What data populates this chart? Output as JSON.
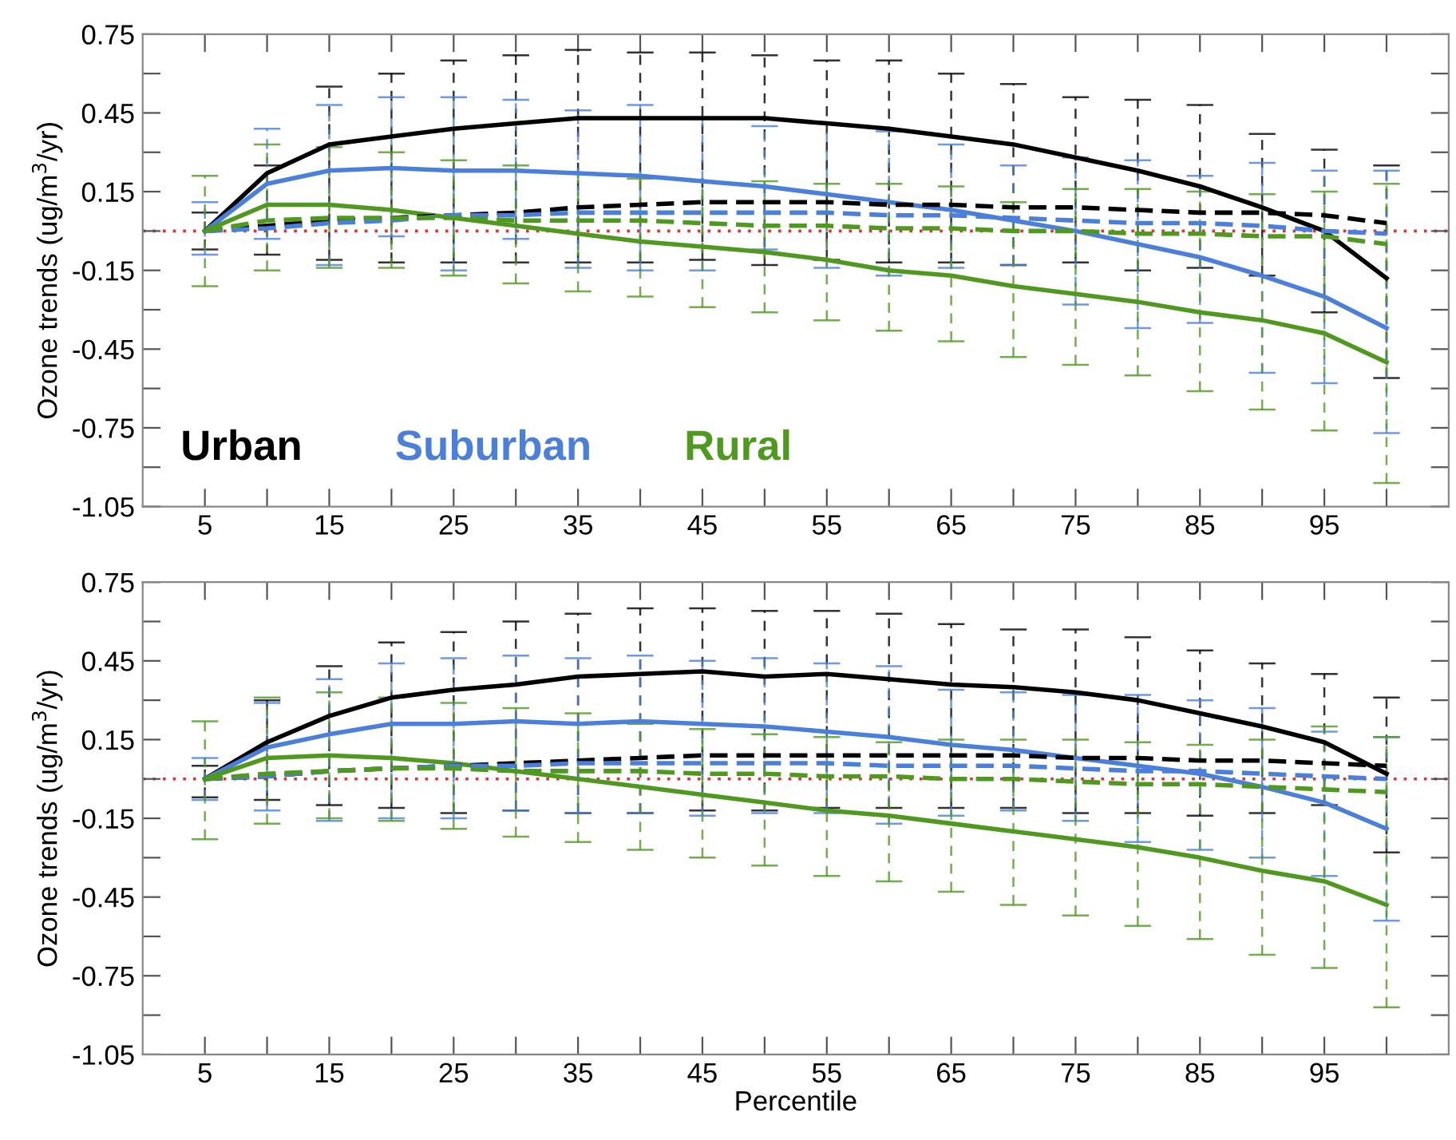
{
  "chart_data": [
    {
      "type": "line",
      "ylabel": "Ozone trends (ug/m$^{3}$/yr)",
      "x": [
        5,
        10,
        15,
        20,
        25,
        30,
        35,
        40,
        45,
        50,
        55,
        60,
        65,
        70,
        75,
        80,
        85,
        90,
        95,
        100
      ],
      "xlim": [
        0,
        105
      ],
      "ylim": [
        -1.05,
        0.75
      ],
      "xticks": [
        5,
        {
          "value": 10,
          "label": null
        },
        15,
        {
          "value": 20,
          "label": null
        },
        25,
        {
          "value": 30,
          "label": null
        },
        35,
        {
          "value": 40,
          "label": null
        },
        45,
        {
          "value": 50,
          "label": null
        },
        55,
        {
          "value": 60,
          "label": null
        },
        65,
        {
          "value": 70,
          "label": null
        },
        75,
        {
          "value": 80,
          "label": null
        },
        85,
        {
          "value": 90,
          "label": null
        },
        95,
        {
          "value": 100,
          "label": null
        }
      ],
      "yticks": [
        0.75,
        {
          "value": 0.6,
          "label": null
        },
        0.45,
        {
          "value": 0.3,
          "label": null
        },
        0.15,
        {
          "value": 0,
          "label": null
        },
        -0.15,
        {
          "value": -0.3,
          "label": null
        },
        -0.45,
        {
          "value": -0.6,
          "label": null
        },
        -0.75,
        {
          "value": -0.9,
          "label": null
        },
        -1.05
      ],
      "legend": "bottom left",
      "grid": false,
      "marker": "none",
      "ref_lines": [
        {
          "axis": "y",
          "value": 0,
          "color": "#e03030",
          "line_style": "dotted"
        }
      ],
      "series": [
        {
          "name": "Urban",
          "color": "#000000",
          "line_style": "solid",
          "values": [
            0,
            0.22,
            0.33,
            0.36,
            0.39,
            0.41,
            0.43,
            0.43,
            0.43,
            0.43,
            0.41,
            0.39,
            0.36,
            0.33,
            0.28,
            0.23,
            0.17,
            0.09,
            0.0,
            -0.18
          ],
          "errors": [
            [
              -0.07,
              0.07
            ],
            [
              -0.09,
              0.25
            ],
            [
              -0.11,
              0.55
            ],
            [
              -0.12,
              0.6
            ],
            [
              -0.12,
              0.65
            ],
            [
              -0.12,
              0.67
            ],
            [
              -0.12,
              0.69
            ],
            [
              -0.12,
              0.68
            ],
            [
              -0.11,
              0.68
            ],
            [
              -0.13,
              0.67
            ],
            [
              -0.11,
              0.65
            ],
            [
              -0.12,
              0.65
            ],
            [
              -0.12,
              0.6
            ],
            [
              -0.13,
              0.56
            ],
            [
              -0.12,
              0.51
            ],
            [
              -0.15,
              0.5
            ],
            [
              -0.14,
              0.48
            ],
            [
              -0.17,
              0.37
            ],
            [
              -0.31,
              0.31
            ],
            [
              -0.56,
              0.25
            ]
          ]
        },
        {
          "name": "Suburban",
          "color": "#4a80dc",
          "line_style": "solid",
          "values": [
            0,
            0.18,
            0.23,
            0.24,
            0.23,
            0.23,
            0.22,
            0.21,
            0.19,
            0.17,
            0.14,
            0.11,
            0.08,
            0.04,
            0.0,
            -0.05,
            -0.1,
            -0.17,
            -0.25,
            -0.37
          ],
          "errors": [
            [
              -0.09,
              0.11
            ],
            [
              -0.03,
              0.39
            ],
            [
              -0.13,
              0.48
            ],
            [
              -0.02,
              0.51
            ],
            [
              -0.15,
              0.51
            ],
            [
              -0.03,
              0.5
            ],
            [
              -0.14,
              0.46
            ],
            [
              -0.15,
              0.48
            ],
            [
              -0.15,
              0.43
            ],
            [
              -0.07,
              0.4
            ],
            [
              -0.14,
              0.41
            ],
            [
              -0.17,
              0.38
            ],
            [
              -0.14,
              0.33
            ],
            [
              -0.13,
              0.25
            ],
            [
              -0.28,
              0.28
            ],
            [
              -0.37,
              0.27
            ],
            [
              -0.35,
              0.21
            ],
            [
              -0.54,
              0.26
            ],
            [
              -0.58,
              0.23
            ],
            [
              -0.77,
              0.23
            ]
          ]
        },
        {
          "name": "Rural",
          "color": "#4f9a1e",
          "line_style": "solid",
          "values": [
            0,
            0.1,
            0.1,
            0.08,
            0.05,
            0.02,
            -0.01,
            -0.04,
            -0.06,
            -0.08,
            -0.11,
            -0.15,
            -0.17,
            -0.21,
            -0.24,
            -0.27,
            -0.31,
            -0.34,
            -0.39,
            -0.5
          ],
          "errors": [
            [
              -0.21,
              0.21
            ],
            [
              -0.15,
              0.33
            ],
            [
              -0.14,
              0.32
            ],
            [
              -0.14,
              0.3
            ],
            [
              -0.17,
              0.27
            ],
            [
              -0.2,
              0.25
            ],
            [
              -0.23,
              0.22
            ],
            [
              -0.25,
              0.2
            ],
            [
              -0.29,
              0.19
            ],
            [
              -0.31,
              0.19
            ],
            [
              -0.34,
              0.18
            ],
            [
              -0.38,
              0.18
            ],
            [
              -0.42,
              0.17
            ],
            [
              -0.48,
              0.11
            ],
            [
              -0.51,
              0.16
            ],
            [
              -0.55,
              0.16
            ],
            [
              -0.61,
              0.15
            ],
            [
              -0.68,
              0.14
            ],
            [
              -0.76,
              0.15
            ],
            [
              -0.96,
              0.18
            ]
          ]
        },
        {
          "color": "#000000",
          "line_style": "dashed",
          "values": [
            0,
            0.02,
            0.04,
            0.05,
            0.06,
            0.07,
            0.09,
            0.1,
            0.11,
            0.11,
            0.11,
            0.1,
            0.1,
            0.09,
            0.09,
            0.08,
            0.07,
            0.07,
            0.06,
            0.03
          ]
        },
        {
          "color": "#4a80dc",
          "line_style": "dashed",
          "values": [
            0,
            0.01,
            0.03,
            0.04,
            0.06,
            0.06,
            0.07,
            0.07,
            0.07,
            0.07,
            0.07,
            0.06,
            0.06,
            0.05,
            0.04,
            0.03,
            0.03,
            0.02,
            0.0,
            -0.01
          ]
        },
        {
          "color": "#4f9a1e",
          "line_style": "dashed",
          "values": [
            0,
            0.04,
            0.05,
            0.05,
            0.05,
            0.04,
            0.04,
            0.04,
            0.03,
            0.02,
            0.02,
            0.01,
            0.01,
            0.0,
            0.0,
            -0.01,
            -0.01,
            -0.02,
            -0.02,
            -0.05
          ]
        }
      ]
    },
    {
      "type": "line",
      "xlabel": "Percentile",
      "ylabel": "Ozone trends (ug/m$^{3}$/yr)",
      "x": [
        5,
        10,
        15,
        20,
        25,
        30,
        35,
        40,
        45,
        50,
        55,
        60,
        65,
        70,
        75,
        80,
        85,
        90,
        95,
        100
      ],
      "xlim": [
        0,
        105
      ],
      "ylim": [
        -1.05,
        0.75
      ],
      "xticks": [
        5,
        {
          "value": 10,
          "label": null
        },
        15,
        {
          "value": 20,
          "label": null
        },
        25,
        {
          "value": 30,
          "label": null
        },
        35,
        {
          "value": 40,
          "label": null
        },
        45,
        {
          "value": 50,
          "label": null
        },
        55,
        {
          "value": 60,
          "label": null
        },
        65,
        {
          "value": 70,
          "label": null
        },
        75,
        {
          "value": 80,
          "label": null
        },
        85,
        {
          "value": 90,
          "label": null
        },
        95,
        {
          "value": 100,
          "label": null
        }
      ],
      "yticks": [
        0.75,
        {
          "value": 0.6,
          "label": null
        },
        0.45,
        {
          "value": 0.3,
          "label": null
        },
        0.15,
        {
          "value": 0,
          "label": null
        },
        -0.15,
        {
          "value": -0.3,
          "label": null
        },
        -0.45,
        {
          "value": -0.6,
          "label": null
        },
        -0.75,
        {
          "value": -0.9,
          "label": null
        },
        -1.05
      ],
      "grid": false,
      "marker": "none",
      "ref_lines": [
        {
          "axis": "y",
          "value": 0,
          "color": "#e03030",
          "line_style": "dotted"
        }
      ],
      "series": [
        {
          "color": "#000000",
          "line_style": "solid",
          "values": [
            0,
            0.14,
            0.24,
            0.31,
            0.34,
            0.36,
            0.39,
            0.4,
            0.41,
            0.39,
            0.4,
            0.38,
            0.36,
            0.35,
            0.33,
            0.3,
            0.25,
            0.2,
            0.14,
            0.02
          ],
          "errors": [
            [
              -0.07,
              0.05
            ],
            [
              -0.08,
              0.3
            ],
            [
              -0.1,
              0.43
            ],
            [
              -0.11,
              0.52
            ],
            [
              -0.13,
              0.56
            ],
            [
              -0.12,
              0.6
            ],
            [
              -0.13,
              0.63
            ],
            [
              -0.13,
              0.65
            ],
            [
              -0.12,
              0.65
            ],
            [
              -0.12,
              0.64
            ],
            [
              -0.11,
              0.64
            ],
            [
              -0.11,
              0.63
            ],
            [
              -0.11,
              0.59
            ],
            [
              -0.11,
              0.57
            ],
            [
              -0.13,
              0.57
            ],
            [
              -0.13,
              0.54
            ],
            [
              -0.14,
              0.49
            ],
            [
              -0.13,
              0.44
            ],
            [
              -0.1,
              0.4
            ],
            [
              -0.28,
              0.31
            ]
          ]
        },
        {
          "color": "#4a80dc",
          "line_style": "solid",
          "values": [
            0,
            0.12,
            0.17,
            0.21,
            0.21,
            0.22,
            0.21,
            0.22,
            0.21,
            0.2,
            0.18,
            0.16,
            0.13,
            0.11,
            0.08,
            0.05,
            0.02,
            -0.03,
            -0.09,
            -0.19
          ],
          "errors": [
            [
              -0.08,
              0.08
            ],
            [
              -0.12,
              0.29
            ],
            [
              -0.16,
              0.38
            ],
            [
              -0.15,
              0.44
            ],
            [
              -0.15,
              0.46
            ],
            [
              -0.12,
              0.47
            ],
            [
              -0.13,
              0.46
            ],
            [
              -0.13,
              0.47
            ],
            [
              -0.14,
              0.45
            ],
            [
              -0.13,
              0.46
            ],
            [
              -0.13,
              0.44
            ],
            [
              -0.17,
              0.43
            ],
            [
              -0.14,
              0.34
            ],
            [
              -0.12,
              0.33
            ],
            [
              -0.16,
              0.32
            ],
            [
              -0.24,
              0.32
            ],
            [
              -0.27,
              0.3
            ],
            [
              -0.3,
              0.27
            ],
            [
              -0.37,
              0.18
            ],
            [
              -0.54,
              0.16
            ]
          ]
        },
        {
          "color": "#4f9a1e",
          "line_style": "solid",
          "values": [
            0,
            0.08,
            0.09,
            0.08,
            0.06,
            0.03,
            0.0,
            -0.03,
            -0.06,
            -0.09,
            -0.12,
            -0.14,
            -0.17,
            -0.2,
            -0.23,
            -0.26,
            -0.3,
            -0.35,
            -0.39,
            -0.48
          ],
          "errors": [
            [
              -0.23,
              0.22
            ],
            [
              -0.17,
              0.31
            ],
            [
              -0.15,
              0.33
            ],
            [
              -0.16,
              0.31
            ],
            [
              -0.19,
              0.29
            ],
            [
              -0.22,
              0.27
            ],
            [
              -0.24,
              0.25
            ],
            [
              -0.27,
              0.21
            ],
            [
              -0.3,
              0.19
            ],
            [
              -0.33,
              0.17
            ],
            [
              -0.37,
              0.16
            ],
            [
              -0.39,
              0.14
            ],
            [
              -0.43,
              0.15
            ],
            [
              -0.48,
              0.15
            ],
            [
              -0.52,
              0.15
            ],
            [
              -0.56,
              0.14
            ],
            [
              -0.61,
              0.13
            ],
            [
              -0.67,
              0.15
            ],
            [
              -0.72,
              0.2
            ],
            [
              -0.87,
              0.16
            ]
          ]
        },
        {
          "color": "#000000",
          "line_style": "dashed",
          "values": [
            0,
            0.01,
            0.03,
            0.04,
            0.05,
            0.06,
            0.07,
            0.08,
            0.09,
            0.09,
            0.09,
            0.09,
            0.09,
            0.09,
            0.08,
            0.08,
            0.07,
            0.07,
            0.06,
            0.05
          ]
        },
        {
          "color": "#4a80dc",
          "line_style": "dashed",
          "values": [
            0,
            0.01,
            0.03,
            0.04,
            0.05,
            0.05,
            0.06,
            0.06,
            0.06,
            0.06,
            0.06,
            0.05,
            0.05,
            0.05,
            0.04,
            0.03,
            0.03,
            0.02,
            0.01,
            0.0
          ]
        },
        {
          "color": "#4f9a1e",
          "line_style": "dashed",
          "values": [
            0,
            0.02,
            0.03,
            0.04,
            0.04,
            0.03,
            0.03,
            0.03,
            0.02,
            0.02,
            0.01,
            0.01,
            0.0,
            0.0,
            -0.01,
            -0.02,
            -0.02,
            -0.03,
            -0.04,
            -0.05
          ]
        }
      ]
    }
  ]
}
